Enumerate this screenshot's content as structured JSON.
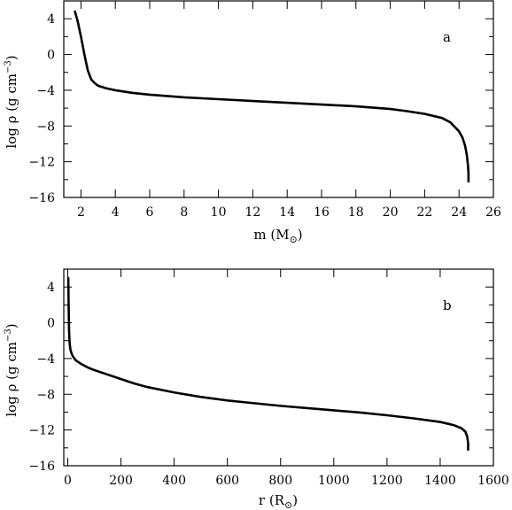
{
  "chart_data": [
    {
      "type": "line",
      "panel_label": "a",
      "xlabel": "m (M",
      "xlabel_sub": "⊙",
      "xlabel_close": ")",
      "ylabel": "log ρ (g cm",
      "ylabel_sup": "−3",
      "ylabel_close": ")",
      "xlim": [
        1,
        26
      ],
      "ylim": [
        -16,
        6
      ],
      "xticks": [
        2,
        4,
        6,
        8,
        10,
        12,
        14,
        16,
        18,
        20,
        22,
        24,
        26
      ],
      "yticks": [
        4,
        0,
        -4,
        -8,
        -12,
        -16
      ],
      "ytick_labels": [
        "4",
        "0",
        "−4",
        "−8",
        "−12",
        "−16"
      ],
      "grid": false,
      "series": [
        {
          "x": [
            1.65,
            1.8,
            2.0,
            2.2,
            2.4,
            2.6,
            2.8,
            3.0,
            3.5,
            4,
            5,
            6,
            8,
            10,
            12,
            14,
            16,
            18,
            19,
            20,
            21,
            22,
            23,
            23.5,
            24.0,
            24.2,
            24.35,
            24.45,
            24.52,
            24.55,
            24.55
          ],
          "y": [
            4.8,
            3.8,
            2.0,
            0.0,
            -1.8,
            -2.8,
            -3.2,
            -3.5,
            -3.8,
            -4.0,
            -4.3,
            -4.5,
            -4.8,
            -5.0,
            -5.2,
            -5.4,
            -5.6,
            -5.8,
            -5.95,
            -6.1,
            -6.35,
            -6.65,
            -7.1,
            -7.6,
            -8.6,
            -9.3,
            -10.2,
            -11.2,
            -12.4,
            -13.3,
            -14.2
          ]
        }
      ]
    },
    {
      "type": "line",
      "panel_label": "b",
      "xlabel": "r (R",
      "xlabel_sub": "⊙",
      "xlabel_close": ")",
      "ylabel": "log ρ (g cm",
      "ylabel_sup": "−3",
      "ylabel_close": ")",
      "xlim": [
        -15,
        1600
      ],
      "ylim": [
        -16,
        6
      ],
      "xticks": [
        0,
        200,
        400,
        600,
        800,
        1000,
        1200,
        1400,
        1600
      ],
      "yticks": [
        4,
        0,
        -4,
        -8,
        -12,
        -16
      ],
      "ytick_labels": [
        "4",
        "0",
        "−4",
        "−8",
        "−12",
        "−16"
      ],
      "grid": false,
      "series": [
        {
          "x": [
            2,
            3,
            4,
            5,
            7,
            10,
            15,
            20,
            30,
            50,
            75,
            100,
            150,
            200,
            250,
            300,
            400,
            500,
            600,
            700,
            800,
            900,
            1000,
            1100,
            1200,
            1300,
            1400,
            1450,
            1480,
            1495,
            1502,
            1505,
            1505
          ],
          "y": [
            5.0,
            2.5,
            0.5,
            -1.0,
            -2.3,
            -3.0,
            -3.5,
            -3.8,
            -4.2,
            -4.6,
            -5.0,
            -5.3,
            -5.8,
            -6.3,
            -6.8,
            -7.2,
            -7.8,
            -8.3,
            -8.7,
            -9.0,
            -9.3,
            -9.55,
            -9.8,
            -10.05,
            -10.35,
            -10.7,
            -11.1,
            -11.45,
            -11.8,
            -12.2,
            -12.8,
            -13.5,
            -14.2
          ]
        }
      ]
    }
  ]
}
